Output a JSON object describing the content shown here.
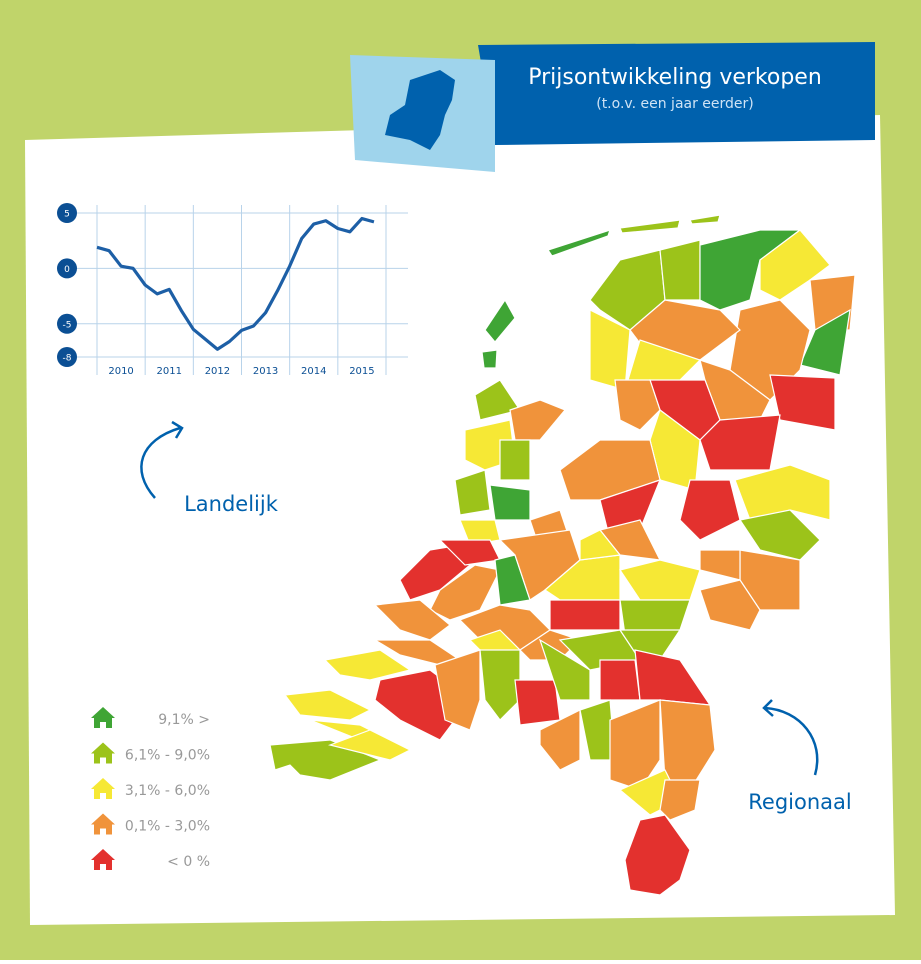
{
  "header": {
    "title": "Prijsontwikkeling verkopen",
    "subtitle": "(t.o.v. een jaar eerder)"
  },
  "chart_data": {
    "type": "line",
    "x": [
      2010,
      2010.25,
      2010.5,
      2010.75,
      2011,
      2011.25,
      2011.5,
      2011.75,
      2012,
      2012.25,
      2012.5,
      2012.75,
      2013,
      2013.25,
      2013.5,
      2013.75,
      2014,
      2014.25,
      2014.5,
      2014.75,
      2015,
      2015.25,
      2015.5,
      2015.75
    ],
    "series": [
      {
        "color": "#1d5fa6",
        "values": [
          1.9,
          1.6,
          0.2,
          0,
          -1.5,
          -2.3,
          -1.9,
          -3.8,
          -5.5,
          -6.4,
          -7.3,
          -6.6,
          -5.6,
          -5.2,
          -4.0,
          -2.0,
          0.2,
          2.7,
          4.0,
          4.3,
          3.6,
          3.3,
          4.5,
          4.2
        ]
      }
    ],
    "xlim": [
      2010,
      2016
    ],
    "xticks": [
      {
        "value": 2010.5,
        "label": "2010"
      },
      {
        "value": 2011.5,
        "label": "2011"
      },
      {
        "value": 2012.5,
        "label": "2012"
      },
      {
        "value": 2013.5,
        "label": "2013"
      },
      {
        "value": 2014.5,
        "label": "2014"
      },
      {
        "value": 2015.5,
        "label": "2015"
      }
    ],
    "ylim": [
      -8,
      5
    ],
    "yticks": [
      5,
      0,
      -5,
      -8
    ],
    "grid": true
  },
  "annotations": [
    "Landelijk",
    "Regionaal"
  ],
  "legend": [
    {
      "label": "9,1% >",
      "color": "#3fa535"
    },
    {
      "label": "6,1% - 9,0%",
      "color": "#9cc31a"
    },
    {
      "label": "3,1% - 6,0%",
      "color": "#f6e835"
    },
    {
      "label": "0,1% - 3,0%",
      "color": "#f0933b"
    },
    {
      "label": "< 0 %",
      "color": "#e3312e"
    }
  ]
}
